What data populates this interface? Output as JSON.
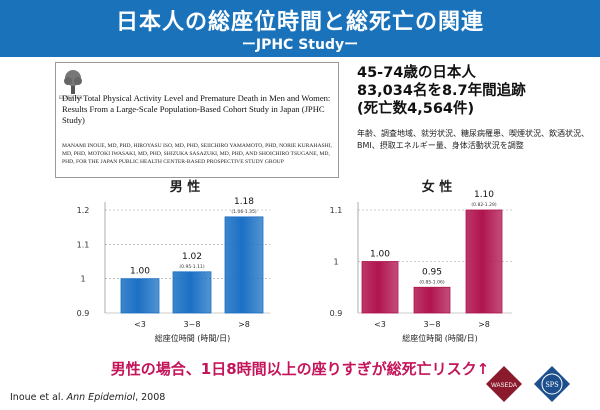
{
  "header": {
    "title": "日本人の総座位時間と総死亡の関連",
    "subtitle": "ーJPHC Studyー"
  },
  "paper": {
    "logo_label": "ELSEVIER",
    "title": "Daily Total Physical Activity Level and Premature Death in Men and Women: Results From a Large-Scale Population-Based Cohort Study in Japan (JPHC Study)",
    "authors": "Manami Inoue, MD, PhD, Hiroyasu Iso, MD, PhD, Seiichiro Yamamoto, PhD, Norie Kurahashi, MD, PhD, Motoki Iwasaki, MD, PhD, Shizuka Sasazuki, MD, PhD, and Shoichiro Tsugane, MD, PhD, for the Japan Public Health Center-Based Prospective Study Group"
  },
  "study_info": {
    "line1": "45-74歳の日本人",
    "line2": "83,034名を8.7年間追跡",
    "line3": "(死亡数4,564件)",
    "adjustment": "年齢、調査地域、就労状況、糖尿病罹患、喫煙状況、飲酒状況、BMI、摂取エネルギー量、身体活動状況を調整"
  },
  "chart_data": [
    {
      "type": "bar",
      "title": "男 性",
      "xlabel": "総座位時間 (時間/日)",
      "categories": [
        "<3",
        "3~8",
        ">8"
      ],
      "values": [
        1.0,
        1.02,
        1.18
      ],
      "value_labels": [
        "1.00",
        "1.02",
        "1.18"
      ],
      "ci_labels": [
        "",
        "(0.95-1.11)",
        "(1.06-1.35)"
      ],
      "ylim": [
        0.9,
        1.2
      ],
      "yticks": [
        0.9,
        1,
        1.1,
        1.2
      ],
      "ytick_labels": [
        "0.9",
        "1",
        "1.1",
        "1.2"
      ],
      "color": "#1b70c4"
    },
    {
      "type": "bar",
      "title": "女 性",
      "xlabel": "総座位時間 (時間/日)",
      "categories": [
        "<3",
        "3~8",
        ">8"
      ],
      "values": [
        1.0,
        0.95,
        1.1
      ],
      "value_labels": [
        "1.00",
        "0.95",
        "1.10"
      ],
      "ci_labels": [
        "",
        "(0.85-1.06)",
        "(0.82-1.29)"
      ],
      "ylim": [
        0.9,
        1.1
      ],
      "yticks": [
        0.9,
        1,
        1.1
      ],
      "ytick_labels": [
        "0.9",
        "1",
        "1.1"
      ],
      "color": "#b0144f"
    }
  ],
  "conclusion": "男性の場合、1日8時間以上の座りすぎが総死亡リスク↑",
  "citation": {
    "authors": "Inoue et al. ",
    "journal": "Ann Epidemiol",
    "year": ", 2008"
  },
  "logos": {
    "waseda": "WASEDA",
    "sps": "SPS"
  }
}
